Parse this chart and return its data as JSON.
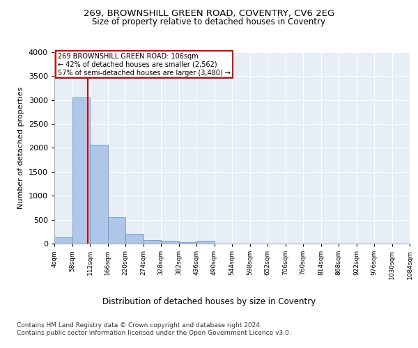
{
  "title1": "269, BROWNSHILL GREEN ROAD, COVENTRY, CV6 2EG",
  "title2": "Size of property relative to detached houses in Coventry",
  "xlabel": "Distribution of detached houses by size in Coventry",
  "ylabel": "Number of detached properties",
  "bar_color": "#aec6e8",
  "bar_edge_color": "#5a8fc2",
  "bin_edges": [
    4,
    58,
    112,
    166,
    220,
    274,
    328,
    382,
    436,
    490,
    544,
    598,
    652,
    706,
    760,
    814,
    868,
    922,
    976,
    1030,
    1084
  ],
  "bar_heights": [
    130,
    3060,
    2060,
    560,
    200,
    75,
    55,
    30,
    55,
    0,
    0,
    0,
    0,
    0,
    0,
    0,
    0,
    0,
    0,
    0
  ],
  "property_size": 106,
  "red_line_color": "#cc0000",
  "annotation_line1": "269 BROWNSHILL GREEN ROAD: 106sqm",
  "annotation_line2": "← 42% of detached houses are smaller (2,562)",
  "annotation_line3": "57% of semi-detached houses are larger (3,480) →",
  "annotation_box_color": "#cc0000",
  "ylim": [
    0,
    4000
  ],
  "yticks": [
    0,
    500,
    1000,
    1500,
    2000,
    2500,
    3000,
    3500,
    4000
  ],
  "footer1": "Contains HM Land Registry data © Crown copyright and database right 2024.",
  "footer2": "Contains public sector information licensed under the Open Government Licence v3.0.",
  "bg_color": "#e8eef5",
  "grid_color": "#ffffff",
  "tick_labels": [
    "4sqm",
    "58sqm",
    "112sqm",
    "166sqm",
    "220sqm",
    "274sqm",
    "328sqm",
    "382sqm",
    "436sqm",
    "490sqm",
    "544sqm",
    "598sqm",
    "652sqm",
    "706sqm",
    "760sqm",
    "814sqm",
    "868sqm",
    "922sqm",
    "976sqm",
    "1030sqm",
    "1084sqm"
  ]
}
